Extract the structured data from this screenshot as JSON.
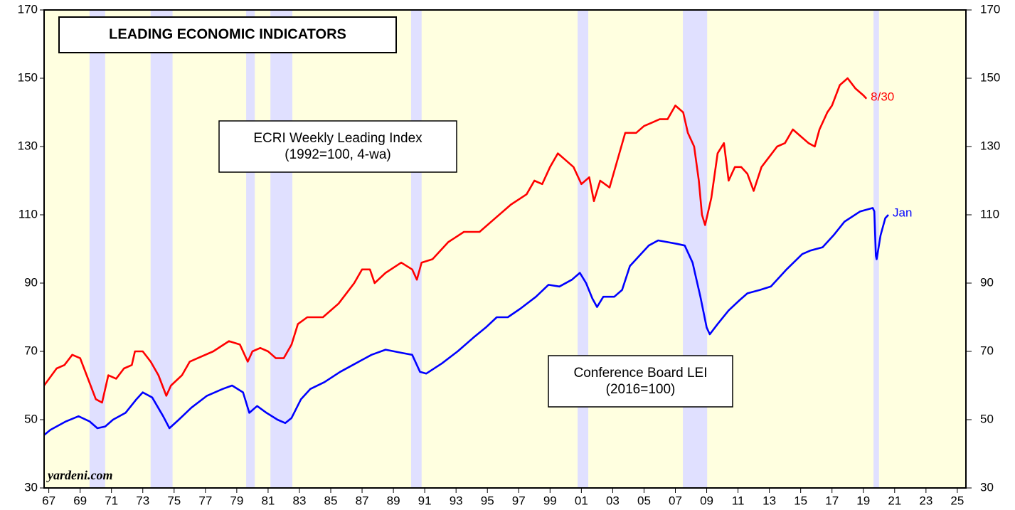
{
  "chart_data": {
    "type": "line",
    "title": "LEADING ECONOMIC INDICATORS",
    "source": "yardeni.com",
    "xlim": [
      1967.2,
      2026.05
    ],
    "xticks": [
      {
        "value": 1967.5,
        "label": "67"
      },
      {
        "value": 1969.5,
        "label": "69"
      },
      {
        "value": 1971.5,
        "label": "71"
      },
      {
        "value": 1973.5,
        "label": "73"
      },
      {
        "value": 1975.5,
        "label": "75"
      },
      {
        "value": 1977.5,
        "label": "77"
      },
      {
        "value": 1979.5,
        "label": "79"
      },
      {
        "value": 1981.5,
        "label": "81"
      },
      {
        "value": 1983.5,
        "label": "83"
      },
      {
        "value": 1985.5,
        "label": "85"
      },
      {
        "value": 1987.5,
        "label": "87"
      },
      {
        "value": 1989.5,
        "label": "89"
      },
      {
        "value": 1991.5,
        "label": "91"
      },
      {
        "value": 1993.5,
        "label": "93"
      },
      {
        "value": 1995.5,
        "label": "95"
      },
      {
        "value": 1997.5,
        "label": "97"
      },
      {
        "value": 1999.5,
        "label": "99"
      },
      {
        "value": 2001.5,
        "label": "01"
      },
      {
        "value": 2003.5,
        "label": "03"
      },
      {
        "value": 2005.5,
        "label": "05"
      },
      {
        "value": 2007.5,
        "label": "07"
      },
      {
        "value": 2009.5,
        "label": "09"
      },
      {
        "value": 2011.5,
        "label": "11"
      },
      {
        "value": 2013.5,
        "label": "13"
      },
      {
        "value": 2015.5,
        "label": "15"
      },
      {
        "value": 2017.5,
        "label": "17"
      },
      {
        "value": 2019.5,
        "label": "19"
      },
      {
        "value": 2021.5,
        "label": "21"
      },
      {
        "value": 2023.5,
        "label": "23"
      },
      {
        "value": 2025.5,
        "label": "25"
      }
    ],
    "ylim": [
      30,
      170
    ],
    "yticks": [
      30,
      50,
      70,
      90,
      110,
      130,
      150,
      170
    ],
    "y2lim": [
      30,
      170
    ],
    "y2ticks": [
      30,
      50,
      70,
      90,
      110,
      130,
      150,
      170
    ],
    "background_color": "#ffffe0",
    "recession_color": "#e0e0ff",
    "recessions": [
      [
        1970.1,
        1971.1
      ],
      [
        1974.0,
        1975.4
      ],
      [
        1980.1,
        1980.65
      ],
      [
        1981.65,
        1983.05
      ],
      [
        1990.63,
        1991.3
      ],
      [
        2001.26,
        2001.94
      ],
      [
        2007.98,
        2009.53
      ],
      [
        2020.15,
        2020.5
      ]
    ],
    "series": [
      {
        "name": "ECRI Weekly Leading Index",
        "color": "#ff0000",
        "end_label": "8/30",
        "x": [
          1967.2,
          1968.0,
          1968.5,
          1969.0,
          1969.5,
          1970.0,
          1970.5,
          1970.9,
          1971.3,
          1971.8,
          1972.3,
          1972.8,
          1973.0,
          1973.5,
          1974.0,
          1974.5,
          1975.0,
          1975.3,
          1976.0,
          1976.5,
          1977.0,
          1978.0,
          1979.0,
          1979.7,
          1980.2,
          1980.5,
          1981.0,
          1981.5,
          1982.0,
          1982.5,
          1983.0,
          1983.4,
          1984.0,
          1985.0,
          1986.0,
          1986.5,
          1987.0,
          1987.5,
          1988.0,
          1988.3,
          1989.0,
          1990.0,
          1990.7,
          1991.0,
          1991.3,
          1992.0,
          1993.0,
          1994.0,
          1995.0,
          1996.0,
          1997.0,
          1998.0,
          1998.5,
          1999.0,
          1999.5,
          2000.0,
          2000.5,
          2001.0,
          2001.5,
          2002.0,
          2002.3,
          2002.7,
          2003.3,
          2003.8,
          2004.3,
          2005.0,
          2005.5,
          2006.0,
          2006.5,
          2007.0,
          2007.5,
          2008.0,
          2008.3,
          2008.7,
          2009.0,
          2009.2,
          2009.4,
          2009.8,
          2010.2,
          2010.6,
          2010.9,
          2011.3,
          2011.7,
          2012.1,
          2012.5,
          2013.0,
          2013.5,
          2014.0,
          2014.5,
          2015.0,
          2015.5,
          2016.0,
          2016.4,
          2016.7,
          2017.2,
          2017.5,
          2018.0,
          2018.5,
          2019.0,
          2019.5,
          2019.7
        ],
        "values": [
          60,
          65,
          66,
          69,
          68,
          62,
          56,
          55,
          63,
          62,
          65,
          66,
          70,
          70,
          67,
          63,
          57,
          60,
          63,
          67,
          68,
          70,
          73,
          72,
          67,
          70,
          71,
          70,
          68,
          68,
          72,
          78,
          80,
          80,
          84,
          87,
          90,
          94,
          94,
          90,
          93,
          96,
          94,
          91,
          96,
          97,
          102,
          105,
          105,
          109,
          113,
          116,
          120,
          119,
          124,
          128,
          126,
          124,
          119,
          121,
          114,
          120,
          118,
          126,
          134,
          134,
          136,
          137,
          138,
          138,
          142,
          140,
          134,
          130,
          120,
          110,
          107,
          115,
          128,
          131,
          120,
          124,
          124,
          122,
          117,
          124,
          127,
          130,
          131,
          135,
          133,
          131,
          130,
          135,
          140,
          142,
          148,
          150,
          147,
          145,
          144
        ]
      },
      {
        "name": "Conference Board LEI",
        "color": "#0000ff",
        "end_label": "Jan",
        "x": [
          1967.2,
          1967.6,
          1968.6,
          1969.4,
          1970.1,
          1970.6,
          1971.1,
          1971.6,
          1972.4,
          1973.1,
          1973.5,
          1974.1,
          1974.8,
          1975.2,
          1975.8,
          1976.6,
          1977.6,
          1978.6,
          1979.2,
          1979.9,
          1980.3,
          1980.8,
          1981.4,
          1982.1,
          1982.6,
          1983.0,
          1983.6,
          1984.2,
          1985.1,
          1986.1,
          1987.1,
          1988.1,
          1989.0,
          1990.1,
          1990.7,
          1991.2,
          1991.6,
          1992.6,
          1993.6,
          1994.6,
          1995.4,
          1996.1,
          1996.8,
          1997.6,
          1998.6,
          1999.4,
          2000.1,
          2000.9,
          2001.4,
          2001.8,
          2002.2,
          2002.5,
          2002.9,
          2003.6,
          2004.1,
          2004.6,
          2005.2,
          2005.8,
          2006.4,
          2007.0,
          2007.6,
          2008.1,
          2008.6,
          2009.1,
          2009.5,
          2009.7,
          2010.2,
          2010.9,
          2011.6,
          2012.1,
          2012.9,
          2013.6,
          2014.6,
          2015.6,
          2016.1,
          2016.9,
          2017.6,
          2018.3,
          2019.3,
          2020.1,
          2020.2,
          2020.3,
          2020.35,
          2020.6,
          2020.9,
          2021.1
        ],
        "values": [
          45.5,
          47,
          49.5,
          51,
          49.5,
          47.5,
          48,
          50,
          52,
          56,
          58,
          56.5,
          51,
          47.5,
          50,
          53.5,
          57,
          59,
          60,
          58,
          52,
          54,
          52,
          50,
          49,
          50.5,
          56,
          59,
          61,
          64,
          66.5,
          69,
          70.5,
          69.5,
          69,
          64,
          63.5,
          66.5,
          70,
          74,
          77,
          80,
          80,
          82.5,
          86,
          89.5,
          89,
          91,
          93,
          90,
          85.5,
          83,
          86,
          86,
          88,
          95,
          98,
          101,
          102.5,
          102,
          101.5,
          101,
          96,
          86,
          77,
          75,
          78,
          82,
          85,
          87,
          88,
          89,
          94,
          98.5,
          99.5,
          100.5,
          104,
          108,
          111,
          112,
          111,
          98,
          97,
          104,
          109,
          110
        ]
      }
    ],
    "annotations": [
      {
        "lines": [
          "ECRI Weekly Leading Index",
          "(1992=100, 4-wa)"
        ]
      },
      {
        "lines": [
          "Conference Board LEI",
          "(2016=100)"
        ]
      }
    ]
  }
}
